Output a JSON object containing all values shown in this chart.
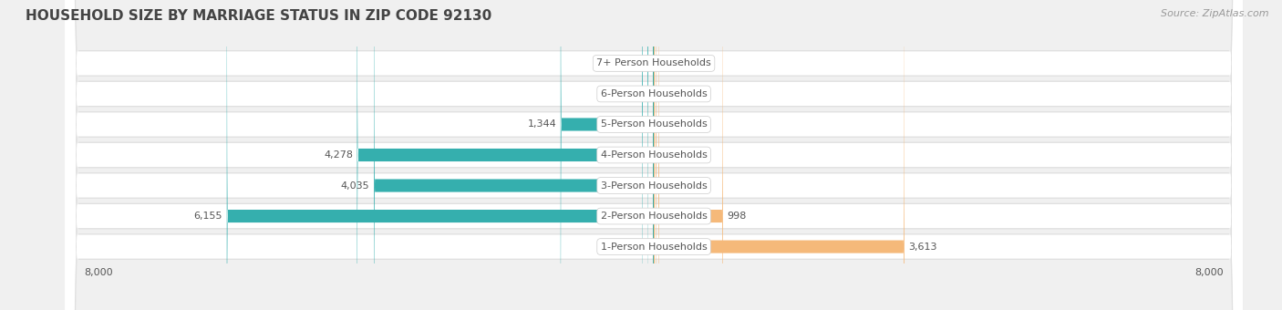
{
  "title": "HOUSEHOLD SIZE BY MARRIAGE STATUS IN ZIP CODE 92130",
  "source": "Source: ZipAtlas.com",
  "categories": [
    "7+ Person Households",
    "6-Person Households",
    "5-Person Households",
    "4-Person Households",
    "3-Person Households",
    "2-Person Households",
    "1-Person Households"
  ],
  "family_values": [
    90,
    170,
    1344,
    4278,
    4035,
    6155,
    0
  ],
  "nonfamily_values": [
    0,
    0,
    11,
    38,
    78,
    998,
    3613
  ],
  "family_color": "#35AFAE",
  "nonfamily_color": "#F5B97A",
  "axis_limit": 8000,
  "bg_color": "#f0f0f0",
  "row_bg_color": "#ffffff",
  "row_outer_bg": "#e0e0e0",
  "label_color": "#555555",
  "title_color": "#444444",
  "title_fontsize": 11,
  "source_fontsize": 8,
  "tick_fontsize": 8,
  "bar_label_fontsize": 8,
  "cat_label_fontsize": 8
}
